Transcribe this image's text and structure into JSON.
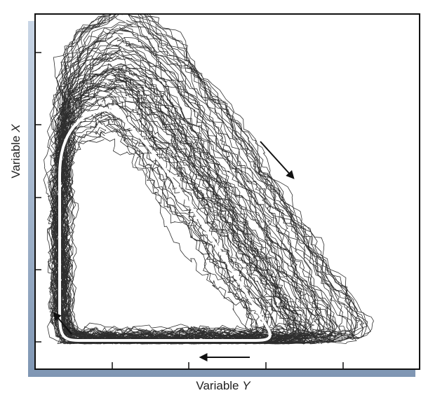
{
  "x_axis": {
    "text": "Variable",
    "variable": "Y"
  },
  "y_axis": {
    "text": "Variable",
    "variable": "X"
  }
}
